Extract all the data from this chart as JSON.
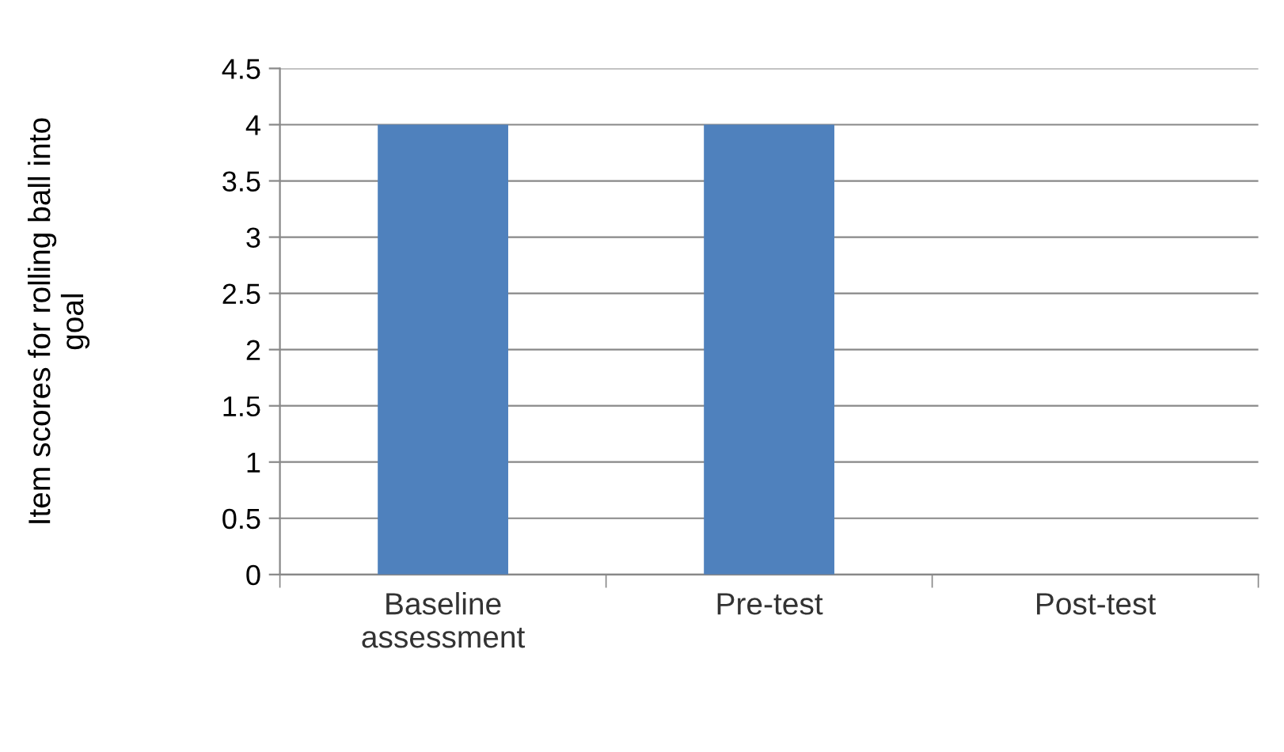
{
  "chart_data": {
    "type": "bar",
    "ylabel": "Item scores for rolling ball into\ngoal",
    "categories": [
      "Baseline\nassessment",
      "Pre-test",
      "Post-test"
    ],
    "values": [
      4,
      4,
      0
    ],
    "color": "#4f81bd",
    "ylim": [
      0,
      4.5
    ],
    "yticks": [
      0,
      0.5,
      1,
      1.5,
      2,
      2.5,
      3,
      3.5,
      4,
      4.5
    ],
    "grid": "y",
    "legend": false
  }
}
